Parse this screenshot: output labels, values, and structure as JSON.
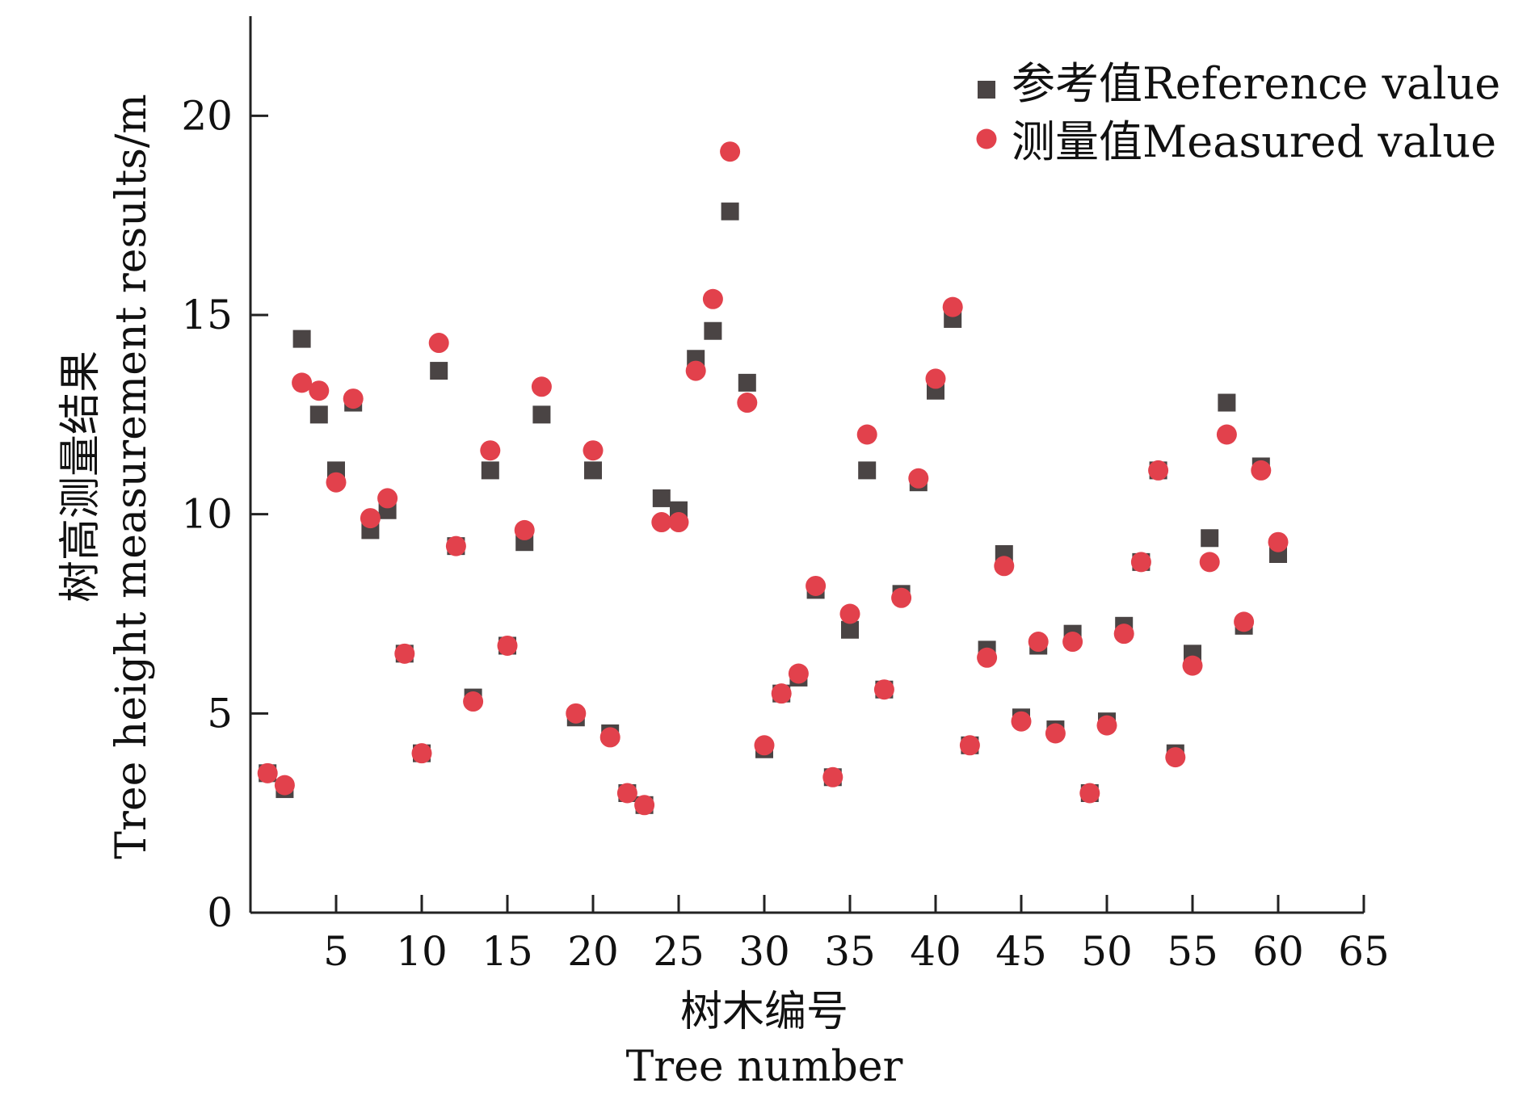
{
  "chart_data": {
    "type": "scatter",
    "xlabel_cn": "树木编号",
    "xlabel_en": "Tree number",
    "ylabel_cn": "树高测量结果",
    "ylabel_en": "Tree height measurement results/m",
    "xlim": [
      0,
      65
    ],
    "ylim": [
      0,
      22.5
    ],
    "xticks": [
      5,
      10,
      15,
      20,
      25,
      30,
      35,
      40,
      45,
      50,
      55,
      60,
      65
    ],
    "yticks": [
      0,
      5,
      10,
      15,
      20
    ],
    "grid": false,
    "legend_position": "top-right",
    "series": [
      {
        "name": "参考值Reference value",
        "marker": "square",
        "color": "#4a4444",
        "x": [
          1,
          2,
          3,
          4,
          5,
          6,
          7,
          8,
          9,
          10,
          11,
          12,
          13,
          14,
          15,
          16,
          17,
          18,
          19,
          20,
          21,
          22,
          23,
          24,
          25,
          26,
          27,
          28,
          29,
          30,
          31,
          32,
          33,
          34,
          35,
          36,
          37,
          38,
          39,
          40,
          41,
          42,
          43,
          44,
          45,
          46,
          47,
          48,
          49,
          50,
          51,
          52,
          53,
          54,
          55,
          56,
          57,
          58,
          59,
          60
        ],
        "y": [
          3.5,
          3.1,
          14.4,
          12.5,
          11.1,
          12.8,
          9.6,
          10.1,
          6.5,
          4.0,
          13.6,
          9.2,
          5.4,
          11.1,
          6.7,
          9.3,
          12.5,
          null,
          4.9,
          11.1,
          4.5,
          3.0,
          2.7,
          10.4,
          10.1,
          13.9,
          14.6,
          17.6,
          13.3,
          4.1,
          5.5,
          5.9,
          8.1,
          3.4,
          7.1,
          11.1,
          5.6,
          8.0,
          10.8,
          13.1,
          14.9,
          4.2,
          6.6,
          9.0,
          4.9,
          6.7,
          4.6,
          7.0,
          3.0,
          4.8,
          7.2,
          8.8,
          11.1,
          4.0,
          6.5,
          9.4,
          12.8,
          7.2,
          11.2,
          9.0
        ]
      },
      {
        "name": "测量值Measured value",
        "marker": "circle",
        "color": "#e2414c",
        "x": [
          1,
          2,
          3,
          4,
          5,
          6,
          7,
          8,
          9,
          10,
          11,
          12,
          13,
          14,
          15,
          16,
          17,
          18,
          19,
          20,
          21,
          22,
          23,
          24,
          25,
          26,
          27,
          28,
          29,
          30,
          31,
          32,
          33,
          34,
          35,
          36,
          37,
          38,
          39,
          40,
          41,
          42,
          43,
          44,
          45,
          46,
          47,
          48,
          49,
          50,
          51,
          52,
          53,
          54,
          55,
          56,
          57,
          58,
          59,
          60
        ],
        "y": [
          3.5,
          3.2,
          13.3,
          13.1,
          10.8,
          12.9,
          9.9,
          10.4,
          6.5,
          4.0,
          14.3,
          9.2,
          5.3,
          11.6,
          6.7,
          9.6,
          13.2,
          null,
          5.0,
          11.6,
          4.4,
          3.0,
          2.7,
          9.8,
          9.8,
          13.6,
          15.4,
          19.1,
          12.8,
          4.2,
          5.5,
          6.0,
          8.2,
          3.4,
          7.5,
          12.0,
          5.6,
          7.9,
          10.9,
          13.4,
          15.2,
          4.2,
          6.4,
          8.7,
          4.8,
          6.8,
          4.5,
          6.8,
          3.0,
          4.7,
          7.0,
          8.8,
          11.1,
          3.9,
          6.2,
          8.8,
          12.0,
          7.3,
          11.1,
          9.3
        ]
      }
    ]
  }
}
